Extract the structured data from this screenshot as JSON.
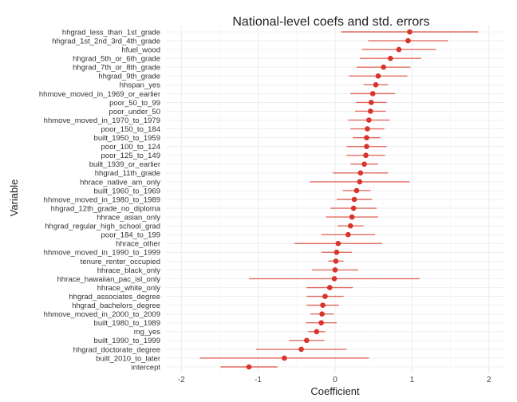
{
  "chart_data": {
    "type": "scatter",
    "title": "National-level coefs and std. errors",
    "xlabel": "Coefficient",
    "ylabel": "Variable",
    "xlim": [
      -2.2,
      2.2
    ],
    "xticks": [
      -2,
      -1,
      0,
      1,
      2
    ],
    "grid": true,
    "legend": "none",
    "colors": {
      "point": "#d7342a",
      "errorbar": "#e06b60",
      "grid": "#ececec"
    },
    "points": [
      {
        "label": "hhgrad_less_than_1st_grade",
        "coef": 0.97,
        "lo": 0.08,
        "hi": 1.86
      },
      {
        "label": "hhgrad_1st_2nd_3rd_4th_grade",
        "coef": 0.95,
        "lo": 0.43,
        "hi": 1.47
      },
      {
        "label": "hfuel_wood",
        "coef": 0.83,
        "lo": 0.35,
        "hi": 1.31
      },
      {
        "label": "hhgrad_5th_or_6th_grade",
        "coef": 0.72,
        "lo": 0.32,
        "hi": 1.12
      },
      {
        "label": "hhgrad_7th_or_8th_grade",
        "coef": 0.63,
        "lo": 0.28,
        "hi": 0.98
      },
      {
        "label": "hhgrad_9th_grade",
        "coef": 0.56,
        "lo": 0.18,
        "hi": 0.94
      },
      {
        "label": "hhspan_yes",
        "coef": 0.53,
        "lo": 0.37,
        "hi": 0.69
      },
      {
        "label": "hhmove_moved_in_1969_or_earlier",
        "coef": 0.49,
        "lo": 0.2,
        "hi": 0.78
      },
      {
        "label": "poor_50_to_99",
        "coef": 0.47,
        "lo": 0.27,
        "hi": 0.67
      },
      {
        "label": "poor_under_50",
        "coef": 0.46,
        "lo": 0.26,
        "hi": 0.66
      },
      {
        "label": "hhmove_moved_in_1970_to_1979",
        "coef": 0.44,
        "lo": 0.17,
        "hi": 0.71
      },
      {
        "label": "poor_150_to_184",
        "coef": 0.42,
        "lo": 0.2,
        "hi": 0.64
      },
      {
        "label": "built_1950_to_1959",
        "coef": 0.41,
        "lo": 0.23,
        "hi": 0.59
      },
      {
        "label": "poor_100_to_124",
        "coef": 0.41,
        "lo": 0.15,
        "hi": 0.67
      },
      {
        "label": "poor_125_to_149",
        "coef": 0.4,
        "lo": 0.15,
        "hi": 0.65
      },
      {
        "label": "built_1939_or_earlier",
        "coef": 0.38,
        "lo": 0.2,
        "hi": 0.56
      },
      {
        "label": "hhgrad_11th_grade",
        "coef": 0.33,
        "lo": -0.03,
        "hi": 0.69
      },
      {
        "label": "hhrace_native_am_only",
        "coef": 0.32,
        "lo": -0.33,
        "hi": 0.97
      },
      {
        "label": "built_1960_to_1969",
        "coef": 0.28,
        "lo": 0.1,
        "hi": 0.46
      },
      {
        "label": "hhmove_moved_in_1980_to_1989",
        "coef": 0.25,
        "lo": 0.02,
        "hi": 0.48
      },
      {
        "label": "hhgrad_12th_grade_no_diploma",
        "coef": 0.24,
        "lo": -0.06,
        "hi": 0.54
      },
      {
        "label": "hhrace_asian_only",
        "coef": 0.22,
        "lo": -0.12,
        "hi": 0.56
      },
      {
        "label": "hhgrad_regular_high_school_grad",
        "coef": 0.2,
        "lo": 0.03,
        "hi": 0.37
      },
      {
        "label": "poor_184_to_199",
        "coef": 0.17,
        "lo": -0.18,
        "hi": 0.52
      },
      {
        "label": "hhrace_other",
        "coef": 0.04,
        "lo": -0.53,
        "hi": 0.61
      },
      {
        "label": "hhmove_moved_in_1990_to_1999",
        "coef": 0.02,
        "lo": -0.18,
        "hi": 0.22
      },
      {
        "label": "tenure_renter_occupied",
        "coef": 0.01,
        "lo": -0.09,
        "hi": 0.11
      },
      {
        "label": "hhrace_black_only",
        "coef": 0.0,
        "lo": -0.3,
        "hi": 0.3
      },
      {
        "label": "hhrace_hawaiian_pac_isl_only",
        "coef": -0.01,
        "lo": -1.12,
        "hi": 1.1
      },
      {
        "label": "hhrace_white_only",
        "coef": -0.07,
        "lo": -0.37,
        "hi": 0.23
      },
      {
        "label": "hhgrad_associates_degree",
        "coef": -0.13,
        "lo": -0.37,
        "hi": 0.11
      },
      {
        "label": "hhgrad_bachelors_degree",
        "coef": -0.16,
        "lo": -0.37,
        "hi": 0.05
      },
      {
        "label": "hhmove_moved_in_2000_to_2009",
        "coef": -0.17,
        "lo": -0.32,
        "hi": -0.02
      },
      {
        "label": "built_1980_to_1989",
        "coef": -0.18,
        "lo": -0.38,
        "hi": 0.02
      },
      {
        "label": "mg_yes",
        "coef": -0.24,
        "lo": -0.35,
        "hi": -0.13
      },
      {
        "label": "built_1990_to_1999",
        "coef": -0.37,
        "lo": -0.6,
        "hi": -0.14
      },
      {
        "label": "hhgrad_doctorate_degree",
        "coef": -0.44,
        "lo": -1.03,
        "hi": 0.15
      },
      {
        "label": "built_2010_to_later",
        "coef": -0.66,
        "lo": -1.76,
        "hi": 0.44
      },
      {
        "label": "intercept",
        "coef": -1.12,
        "lo": -1.49,
        "hi": -0.75
      }
    ]
  }
}
